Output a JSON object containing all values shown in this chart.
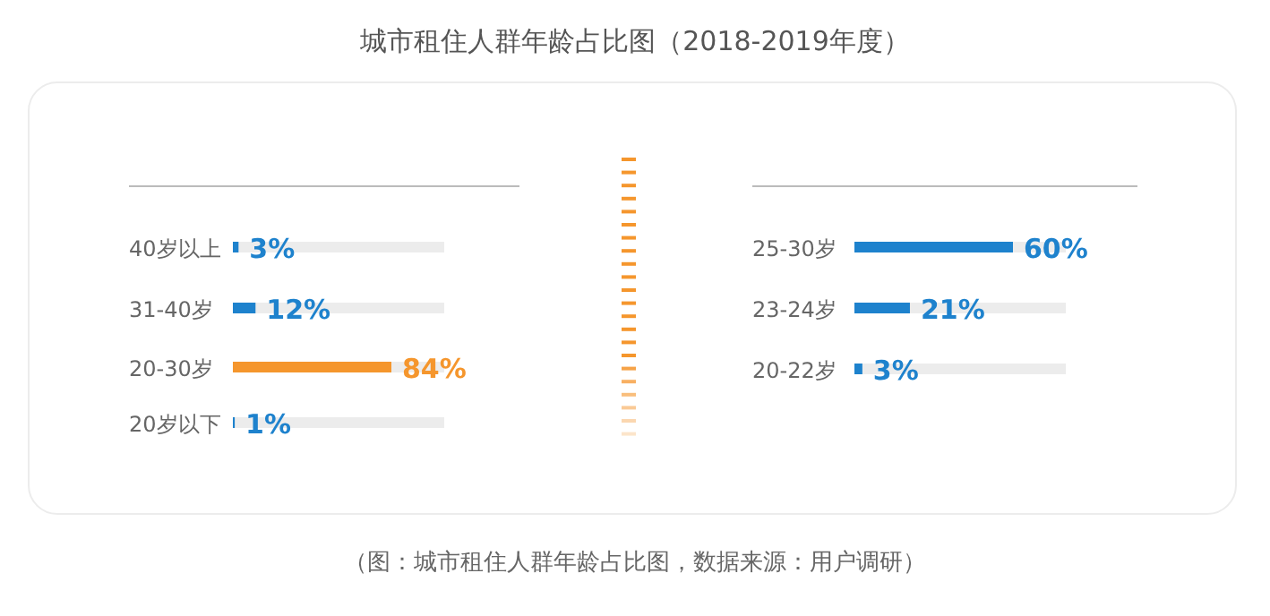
{
  "chart_data": [
    {
      "type": "bar",
      "orientation": "horizontal",
      "title": "城市租住人群年龄占比图（2018-2019年度）",
      "annotations": [
        "（图：城市租住人群年龄占比图，数据来源：用户调研）"
      ],
      "categories": [
        "40岁以上",
        "31-40岁",
        "20-30岁",
        "20岁以下"
      ],
      "values": [
        3,
        12,
        84,
        1
      ],
      "value_labels": [
        "3%",
        "12%",
        "84%",
        "1%"
      ],
      "colors": [
        "#1e82cd",
        "#1e82cd",
        "#f5962d",
        "#1e82cd"
      ]
    },
    {
      "type": "bar",
      "orientation": "horizontal",
      "categories": [
        "25-30岁",
        "23-24岁",
        "20-22岁"
      ],
      "values": [
        60,
        21,
        3
      ],
      "value_labels": [
        "60%",
        "21%",
        "3%"
      ],
      "colors": [
        "#1e82cd",
        "#1e82cd",
        "#1e82cd"
      ]
    }
  ]
}
